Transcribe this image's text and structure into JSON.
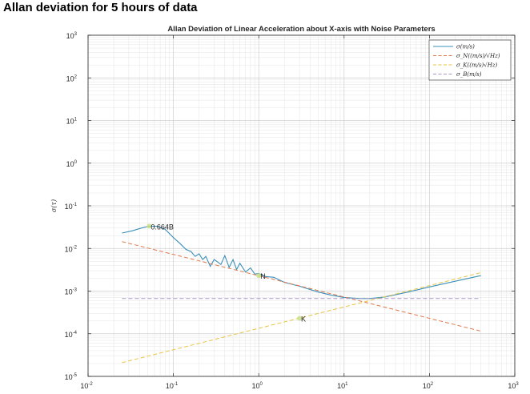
{
  "page": {
    "heading": "Allan deviation for 5 hours of data"
  },
  "chart_data": {
    "type": "line",
    "title": "Allan Deviation of Linear Acceleration about X-axis with Noise Parameters",
    "xlabel": "",
    "ylabel": "σ(τ)",
    "x_scale": "log",
    "y_scale": "log",
    "xlim": [
      0.01,
      1000
    ],
    "ylim": [
      1e-05,
      1000
    ],
    "x_ticks": [
      {
        "base": "10",
        "exp": "-2"
      },
      {
        "base": "10",
        "exp": "-1"
      },
      {
        "base": "10",
        "exp": "0"
      },
      {
        "base": "10",
        "exp": "1"
      },
      {
        "base": "10",
        "exp": "2"
      },
      {
        "base": "10",
        "exp": "3"
      }
    ],
    "y_ticks": [
      {
        "base": "10",
        "exp": "-5"
      },
      {
        "base": "10",
        "exp": "-4"
      },
      {
        "base": "10",
        "exp": "-3"
      },
      {
        "base": "10",
        "exp": "-2"
      },
      {
        "base": "10",
        "exp": "-1"
      },
      {
        "base": "10",
        "exp": "0"
      },
      {
        "base": "10",
        "exp": "1"
      },
      {
        "base": "10",
        "exp": "2"
      },
      {
        "base": "10",
        "exp": "3"
      }
    ],
    "grid": true,
    "minor_grid": true,
    "legend_position": "top-right",
    "series": [
      {
        "name": "σ(m/s)",
        "color": "#3b8fb8",
        "style": "solid",
        "x": [
          0.025,
          0.033,
          0.042,
          0.052,
          0.065,
          0.08,
          0.1,
          0.12,
          0.14,
          0.16,
          0.18,
          0.2,
          0.22,
          0.24,
          0.27,
          0.3,
          0.33,
          0.36,
          0.4,
          0.45,
          0.5,
          0.55,
          0.6,
          0.7,
          0.8,
          0.9,
          1.0,
          1.2,
          1.5,
          2.0,
          3.0,
          5.0,
          7.0,
          10.0,
          15.0,
          20.0,
          30.0,
          50.0,
          100.0,
          200.0,
          400.0
        ],
        "y": [
          0.023,
          0.026,
          0.03,
          0.0334,
          0.033,
          0.028,
          0.018,
          0.013,
          0.0095,
          0.0085,
          0.0065,
          0.0075,
          0.0055,
          0.0065,
          0.0038,
          0.0055,
          0.0048,
          0.0042,
          0.0068,
          0.0036,
          0.0055,
          0.0032,
          0.0045,
          0.0028,
          0.0035,
          0.0025,
          0.0026,
          0.0022,
          0.0021,
          0.0016,
          0.0013,
          0.00095,
          0.00081,
          0.00071,
          0.00067,
          0.00067,
          0.00073,
          0.0009,
          0.00125,
          0.0017,
          0.0023
        ]
      },
      {
        "name": "σ_N((m/s)/√Hz)",
        "color": "#e07b4e",
        "style": "dashed",
        "x": [
          0.025,
          400.0
        ],
        "y": [
          0.0145,
          0.000115
        ]
      },
      {
        "name": "σ_K((m/s)√Hz)",
        "color": "#e8c544",
        "style": "dashed",
        "x": [
          0.025,
          400.0
        ],
        "y": [
          2.1e-05,
          0.0027
        ]
      },
      {
        "name": "σ_B(m/s)",
        "color": "#a896c8",
        "style": "dashed",
        "x": [
          0.025,
          400.0
        ],
        "y": [
          0.00067,
          0.00067
        ]
      }
    ],
    "annotations": [
      {
        "text": "0.664B",
        "x": 0.052,
        "y": 0.0334
      },
      {
        "text": "N",
        "x": 1.0,
        "y": 0.0023
      },
      {
        "text": "K",
        "x": 3.0,
        "y": 0.00023
      }
    ]
  }
}
